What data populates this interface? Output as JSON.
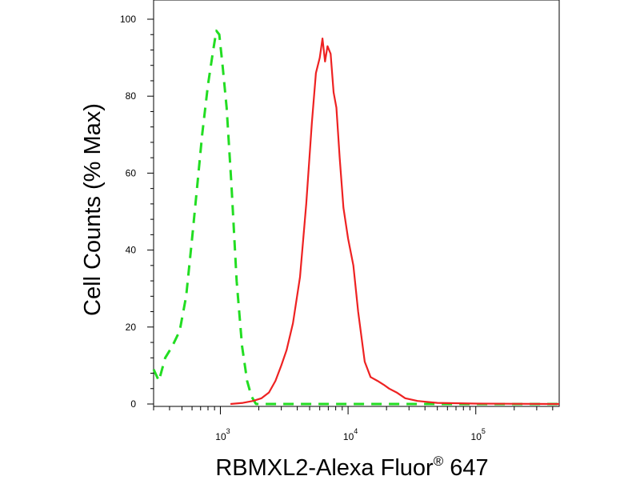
{
  "chart_data": {
    "type": "line",
    "xlabel": "RBMXL2-Alexa Fluor",
    "xlabel_superscript": "®",
    "xlabel_suffix": " 647",
    "ylabel": "Cell Counts (% Max)",
    "x_scale": "log",
    "xlim": [
      300,
      450000
    ],
    "ylim": [
      0,
      100
    ],
    "y_ticks": [
      0,
      20,
      40,
      60,
      80,
      100
    ],
    "y_tick_labels": [
      "0",
      "20",
      "40",
      "60",
      "80",
      "100"
    ],
    "x_major_ticks": [
      1000,
      10000,
      100000
    ],
    "x_tick_labels": [
      {
        "base": "10",
        "exp": "3"
      },
      {
        "base": "10",
        "exp": "4"
      },
      {
        "base": "10",
        "exp": "5"
      }
    ],
    "grid": false,
    "series": [
      {
        "style": "dashed",
        "color": "#22dd22",
        "x": [
          300,
          330,
          370,
          420,
          480,
          540,
          600,
          660,
          720,
          800,
          870,
          930,
          980,
          1040,
          1120,
          1220,
          1340,
          1480,
          1620,
          1750,
          1900,
          2100,
          2500,
          3000,
          5000,
          10000,
          30000,
          100000,
          450000
        ],
        "y": [
          9,
          6,
          12,
          15,
          19,
          28,
          43,
          57,
          70,
          83,
          91,
          97,
          96,
          88,
          77,
          57,
          32,
          15,
          6,
          2,
          0,
          0,
          0,
          0,
          0,
          0,
          0,
          0,
          0
        ]
      },
      {
        "style": "solid",
        "color": "#ee2222",
        "x": [
          1200,
          1500,
          1800,
          2100,
          2400,
          2700,
          3000,
          3300,
          3700,
          4200,
          4700,
          5200,
          5600,
          6000,
          6300,
          6600,
          6900,
          7300,
          7700,
          8100,
          8600,
          9200,
          10000,
          11000,
          12000,
          13500,
          15000,
          17000,
          19000,
          21000,
          24000,
          28000,
          35000,
          50000,
          100000,
          450000
        ],
        "y": [
          0,
          0.3,
          0.8,
          1.5,
          3,
          6,
          10,
          14,
          21,
          33,
          52,
          73,
          86,
          90,
          95,
          89,
          93,
          91,
          81,
          77,
          64,
          51,
          43,
          36,
          24,
          11,
          7,
          6,
          5,
          4,
          3,
          1.5,
          0.8,
          0.3,
          0.1,
          0
        ]
      }
    ]
  }
}
